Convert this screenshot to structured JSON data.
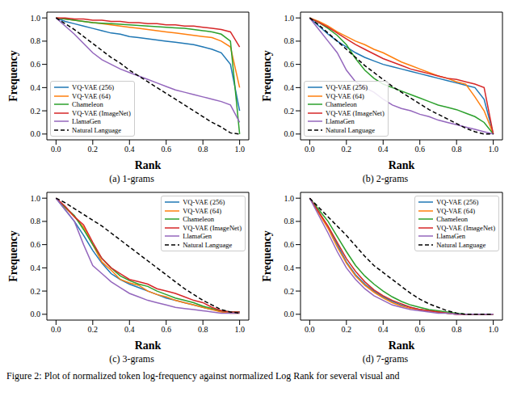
{
  "caption": "Figure 2: Plot of normalized token log-frequency against normalized Log Rank for several visual and",
  "chart_data": [
    {
      "type": "line",
      "title": "(a) 1-grams",
      "x_label": "Rank",
      "y_label": "Frequency",
      "legend": "lower left",
      "xlim": [
        -0.05,
        1.05
      ],
      "ylim": [
        -0.05,
        1.05
      ],
      "xticks": [
        {
          "value": 0,
          "label": "0.0"
        },
        {
          "value": 0.2,
          "label": "0.2"
        },
        {
          "value": 0.4,
          "label": "0.4"
        },
        {
          "value": 0.6,
          "label": "0.6"
        },
        {
          "value": 0.8,
          "label": "0.8"
        },
        {
          "value": 1,
          "label": "1.0"
        }
      ],
      "yticks": [
        {
          "value": 0,
          "label": "0.0"
        },
        {
          "value": 0.2,
          "label": "0.2"
        },
        {
          "value": 0.4,
          "label": "0.4"
        },
        {
          "value": 0.6,
          "label": "0.6"
        },
        {
          "value": 0.8,
          "label": "0.8"
        },
        {
          "value": 1,
          "label": "1.0"
        }
      ],
      "x": [
        0,
        0.05,
        0.1,
        0.15,
        0.2,
        0.25,
        0.3,
        0.35,
        0.4,
        0.45,
        0.5,
        0.55,
        0.6,
        0.65,
        0.7,
        0.75,
        0.8,
        0.85,
        0.9,
        0.95,
        1
      ],
      "series": [
        {
          "name": "VQ-VAE (256)",
          "color": "#1f77b4",
          "line_style": "solid",
          "values": [
            1,
            0.97,
            0.95,
            0.93,
            0.91,
            0.89,
            0.87,
            0.86,
            0.84,
            0.83,
            0.82,
            0.81,
            0.8,
            0.79,
            0.78,
            0.77,
            0.75,
            0.73,
            0.7,
            0.6,
            0.2
          ]
        },
        {
          "name": "VQ-VAE (64)",
          "color": "#ff7f0e",
          "line_style": "solid",
          "values": [
            1,
            0.99,
            0.98,
            0.97,
            0.96,
            0.95,
            0.94,
            0.93,
            0.92,
            0.91,
            0.9,
            0.89,
            0.88,
            0.87,
            0.86,
            0.85,
            0.84,
            0.83,
            0.8,
            0.75,
            0.4
          ]
        },
        {
          "name": "Chameleon",
          "color": "#2ca02c",
          "line_style": "solid",
          "values": [
            1,
            0.99,
            0.98,
            0.97,
            0.96,
            0.955,
            0.95,
            0.945,
            0.94,
            0.935,
            0.93,
            0.925,
            0.92,
            0.915,
            0.91,
            0.9,
            0.89,
            0.88,
            0.86,
            0.8,
            0
          ]
        },
        {
          "name": "VQ-VAE (ImageNet)",
          "color": "#d62728",
          "line_style": "solid",
          "values": [
            1,
            1,
            0.99,
            0.99,
            0.98,
            0.98,
            0.97,
            0.97,
            0.96,
            0.96,
            0.95,
            0.95,
            0.94,
            0.94,
            0.93,
            0.93,
            0.92,
            0.91,
            0.9,
            0.88,
            0.75
          ]
        },
        {
          "name": "LlamaGen",
          "color": "#9467bd",
          "line_style": "solid",
          "values": [
            1,
            0.93,
            0.86,
            0.78,
            0.7,
            0.64,
            0.6,
            0.56,
            0.53,
            0.5,
            0.47,
            0.44,
            0.41,
            0.38,
            0.36,
            0.34,
            0.32,
            0.3,
            0.28,
            0.25,
            0.1
          ]
        },
        {
          "name": "Natural Language",
          "color": "#000000",
          "line_style": "dashed",
          "values": [
            1,
            0.95,
            0.9,
            0.84,
            0.78,
            0.72,
            0.66,
            0.61,
            0.55,
            0.5,
            0.45,
            0.4,
            0.35,
            0.3,
            0.25,
            0.2,
            0.15,
            0.1,
            0.06,
            0.01,
            0
          ]
        }
      ]
    },
    {
      "type": "line",
      "title": "(b) 2-grams",
      "x_label": "Rank",
      "y_label": "Frequency",
      "legend": "lower left",
      "xlim": [
        -0.05,
        1.05
      ],
      "ylim": [
        -0.05,
        1.05
      ],
      "xticks": [
        {
          "value": 0,
          "label": "0.0"
        },
        {
          "value": 0.2,
          "label": "0.2"
        },
        {
          "value": 0.4,
          "label": "0.4"
        },
        {
          "value": 0.6,
          "label": "0.6"
        },
        {
          "value": 0.8,
          "label": "0.8"
        },
        {
          "value": 1,
          "label": "1.0"
        }
      ],
      "yticks": [
        {
          "value": 0,
          "label": "0.0"
        },
        {
          "value": 0.2,
          "label": "0.2"
        },
        {
          "value": 0.4,
          "label": "0.4"
        },
        {
          "value": 0.6,
          "label": "0.6"
        },
        {
          "value": 0.8,
          "label": "0.8"
        },
        {
          "value": 1,
          "label": "1.0"
        }
      ],
      "x": [
        0,
        0.05,
        0.1,
        0.15,
        0.2,
        0.25,
        0.3,
        0.35,
        0.4,
        0.45,
        0.5,
        0.55,
        0.6,
        0.65,
        0.7,
        0.75,
        0.8,
        0.85,
        0.9,
        0.95,
        1
      ],
      "series": [
        {
          "name": "VQ-VAE (256)",
          "color": "#1f77b4",
          "line_style": "solid",
          "values": [
            1,
            0.93,
            0.86,
            0.8,
            0.75,
            0.7,
            0.66,
            0.63,
            0.6,
            0.58,
            0.56,
            0.54,
            0.52,
            0.5,
            0.48,
            0.46,
            0.44,
            0.42,
            0.4,
            0.3,
            0
          ]
        },
        {
          "name": "VQ-VAE (64)",
          "color": "#ff7f0e",
          "line_style": "solid",
          "values": [
            1,
            0.97,
            0.93,
            0.88,
            0.84,
            0.8,
            0.77,
            0.73,
            0.7,
            0.66,
            0.62,
            0.59,
            0.56,
            0.53,
            0.5,
            0.48,
            0.45,
            0.43,
            0.32,
            0.2,
            0
          ]
        },
        {
          "name": "Chameleon",
          "color": "#2ca02c",
          "line_style": "solid",
          "values": [
            1,
            0.96,
            0.91,
            0.85,
            0.77,
            0.65,
            0.55,
            0.48,
            0.43,
            0.4,
            0.37,
            0.34,
            0.31,
            0.28,
            0.25,
            0.23,
            0.21,
            0.18,
            0.15,
            0.1,
            0
          ]
        },
        {
          "name": "VQ-VAE (ImageNet)",
          "color": "#d62728",
          "line_style": "solid",
          "values": [
            1,
            0.96,
            0.92,
            0.87,
            0.82,
            0.77,
            0.73,
            0.69,
            0.65,
            0.62,
            0.59,
            0.56,
            0.54,
            0.52,
            0.5,
            0.48,
            0.47,
            0.45,
            0.43,
            0.4,
            0
          ]
        },
        {
          "name": "LlamaGen",
          "color": "#9467bd",
          "line_style": "solid",
          "values": [
            1,
            0.9,
            0.8,
            0.7,
            0.55,
            0.45,
            0.4,
            0.36,
            0.3,
            0.25,
            0.22,
            0.2,
            0.17,
            0.15,
            0.12,
            0.1,
            0.08,
            0.06,
            0.04,
            0.02,
            0
          ]
        },
        {
          "name": "Natural Language",
          "color": "#000000",
          "line_style": "dashed",
          "values": [
            1,
            0.94,
            0.87,
            0.8,
            0.73,
            0.66,
            0.59,
            0.53,
            0.47,
            0.41,
            0.36,
            0.31,
            0.26,
            0.21,
            0.17,
            0.13,
            0.09,
            0.05,
            0.02,
            0,
            0
          ]
        }
      ]
    },
    {
      "type": "line",
      "title": "(c) 3-grams",
      "x_label": "Rank",
      "y_label": "Frequency",
      "legend": "upper right",
      "xlim": [
        -0.05,
        1.05
      ],
      "ylim": [
        -0.05,
        1.05
      ],
      "xticks": [
        {
          "value": 0,
          "label": "0.0"
        },
        {
          "value": 0.2,
          "label": "0.2"
        },
        {
          "value": 0.4,
          "label": "0.4"
        },
        {
          "value": 0.6,
          "label": "0.6"
        },
        {
          "value": 0.8,
          "label": "0.8"
        },
        {
          "value": 1,
          "label": "1.0"
        }
      ],
      "yticks": [
        {
          "value": 0,
          "label": "0.0"
        },
        {
          "value": 0.2,
          "label": "0.2"
        },
        {
          "value": 0.4,
          "label": "0.4"
        },
        {
          "value": 0.6,
          "label": "0.6"
        },
        {
          "value": 0.8,
          "label": "0.8"
        },
        {
          "value": 1,
          "label": "1.0"
        }
      ],
      "x": [
        0,
        0.05,
        0.1,
        0.15,
        0.2,
        0.25,
        0.3,
        0.35,
        0.4,
        0.45,
        0.5,
        0.55,
        0.6,
        0.65,
        0.7,
        0.75,
        0.8,
        0.85,
        0.9,
        0.95,
        1
      ],
      "series": [
        {
          "name": "VQ-VAE (256)",
          "color": "#1f77b4",
          "line_style": "solid",
          "values": [
            1,
            0.9,
            0.8,
            0.68,
            0.55,
            0.44,
            0.35,
            0.3,
            0.26,
            0.23,
            0.2,
            0.17,
            0.14,
            0.12,
            0.1,
            0.08,
            0.06,
            0.04,
            0.03,
            0.02,
            0.02
          ]
        },
        {
          "name": "VQ-VAE (64)",
          "color": "#ff7f0e",
          "line_style": "solid",
          "values": [
            1,
            0.92,
            0.84,
            0.75,
            0.6,
            0.45,
            0.38,
            0.3,
            0.27,
            0.25,
            0.2,
            0.17,
            0.15,
            0.12,
            0.1,
            0.08,
            0.06,
            0.04,
            0.02,
            0.01,
            0.01
          ]
        },
        {
          "name": "Chameleon",
          "color": "#2ca02c",
          "line_style": "solid",
          "values": [
            1,
            0.92,
            0.85,
            0.73,
            0.6,
            0.48,
            0.4,
            0.33,
            0.29,
            0.26,
            0.24,
            0.2,
            0.17,
            0.14,
            0.12,
            0.1,
            0.07,
            0.05,
            0.03,
            0.02,
            0.02
          ]
        },
        {
          "name": "VQ-VAE (ImageNet)",
          "color": "#d62728",
          "line_style": "solid",
          "values": [
            1,
            0.93,
            0.84,
            0.77,
            0.62,
            0.48,
            0.4,
            0.35,
            0.3,
            0.28,
            0.26,
            0.22,
            0.2,
            0.18,
            0.15,
            0.12,
            0.1,
            0.06,
            0.03,
            0.02,
            0.02
          ]
        },
        {
          "name": "LlamaGen",
          "color": "#9467bd",
          "line_style": "solid",
          "values": [
            1,
            0.9,
            0.8,
            0.6,
            0.42,
            0.35,
            0.28,
            0.23,
            0.18,
            0.15,
            0.12,
            0.1,
            0.08,
            0.06,
            0.05,
            0.04,
            0.03,
            0.02,
            0.01,
            0.01,
            0.01
          ]
        },
        {
          "name": "Natural Language",
          "color": "#000000",
          "line_style": "dashed",
          "values": [
            1,
            0.96,
            0.91,
            0.86,
            0.81,
            0.76,
            0.7,
            0.64,
            0.58,
            0.52,
            0.46,
            0.4,
            0.34,
            0.28,
            0.22,
            0.17,
            0.12,
            0.08,
            0.04,
            0.02,
            0.01
          ]
        }
      ]
    },
    {
      "type": "line",
      "title": "(d) 7-grams",
      "x_label": "Rank",
      "y_label": "Frequency",
      "legend": "upper right",
      "xlim": [
        -0.05,
        1.05
      ],
      "ylim": [
        -0.05,
        1.05
      ],
      "xticks": [
        {
          "value": 0,
          "label": "0.0"
        },
        {
          "value": 0.2,
          "label": "0.2"
        },
        {
          "value": 0.4,
          "label": "0.4"
        },
        {
          "value": 0.6,
          "label": "0.6"
        },
        {
          "value": 0.8,
          "label": "0.8"
        },
        {
          "value": 1,
          "label": "1.0"
        }
      ],
      "yticks": [
        {
          "value": 0,
          "label": "0.0"
        },
        {
          "value": 0.2,
          "label": "0.2"
        },
        {
          "value": 0.4,
          "label": "0.4"
        },
        {
          "value": 0.6,
          "label": "0.6"
        },
        {
          "value": 0.8,
          "label": "0.8"
        },
        {
          "value": 1,
          "label": "1.0"
        }
      ],
      "x": [
        0,
        0.05,
        0.1,
        0.15,
        0.2,
        0.25,
        0.3,
        0.35,
        0.4,
        0.45,
        0.5,
        0.55,
        0.6,
        0.65,
        0.7,
        0.75,
        0.8,
        0.85,
        0.9,
        0.95,
        1
      ],
      "series": [
        {
          "name": "VQ-VAE (256)",
          "color": "#1f77b4",
          "line_style": "solid",
          "values": [
            1,
            0.88,
            0.75,
            0.6,
            0.45,
            0.34,
            0.26,
            0.2,
            0.15,
            0.11,
            0.08,
            0.06,
            0.04,
            0.03,
            0.02,
            0.01,
            0,
            0,
            0,
            0,
            0
          ]
        },
        {
          "name": "VQ-VAE (64)",
          "color": "#ff7f0e",
          "line_style": "solid",
          "values": [
            1,
            0.87,
            0.74,
            0.58,
            0.44,
            0.33,
            0.25,
            0.19,
            0.14,
            0.1,
            0.07,
            0.05,
            0.04,
            0.03,
            0.02,
            0.01,
            0,
            0,
            0,
            0,
            0
          ]
        },
        {
          "name": "Chameleon",
          "color": "#2ca02c",
          "line_style": "solid",
          "values": [
            1,
            0.9,
            0.8,
            0.67,
            0.54,
            0.42,
            0.33,
            0.26,
            0.2,
            0.15,
            0.11,
            0.08,
            0.06,
            0.04,
            0.03,
            0.02,
            0.01,
            0,
            0,
            0,
            0
          ]
        },
        {
          "name": "VQ-VAE (ImageNet)",
          "color": "#d62728",
          "line_style": "solid",
          "values": [
            1,
            0.88,
            0.76,
            0.62,
            0.48,
            0.37,
            0.28,
            0.21,
            0.16,
            0.12,
            0.09,
            0.06,
            0.04,
            0.03,
            0.02,
            0.01,
            0,
            0,
            0,
            0,
            0
          ]
        },
        {
          "name": "LlamaGen",
          "color": "#9467bd",
          "line_style": "solid",
          "values": [
            1,
            0.85,
            0.7,
            0.54,
            0.4,
            0.3,
            0.22,
            0.16,
            0.12,
            0.08,
            0.06,
            0.04,
            0.03,
            0.02,
            0.01,
            0.01,
            0,
            0,
            0,
            0,
            0
          ]
        },
        {
          "name": "Natural Language",
          "color": "#000000",
          "line_style": "dashed",
          "values": [
            1,
            0.92,
            0.84,
            0.76,
            0.68,
            0.59,
            0.5,
            0.42,
            0.36,
            0.3,
            0.24,
            0.18,
            0.13,
            0.09,
            0.06,
            0.03,
            0.01,
            0,
            0,
            0,
            0
          ]
        }
      ]
    }
  ]
}
